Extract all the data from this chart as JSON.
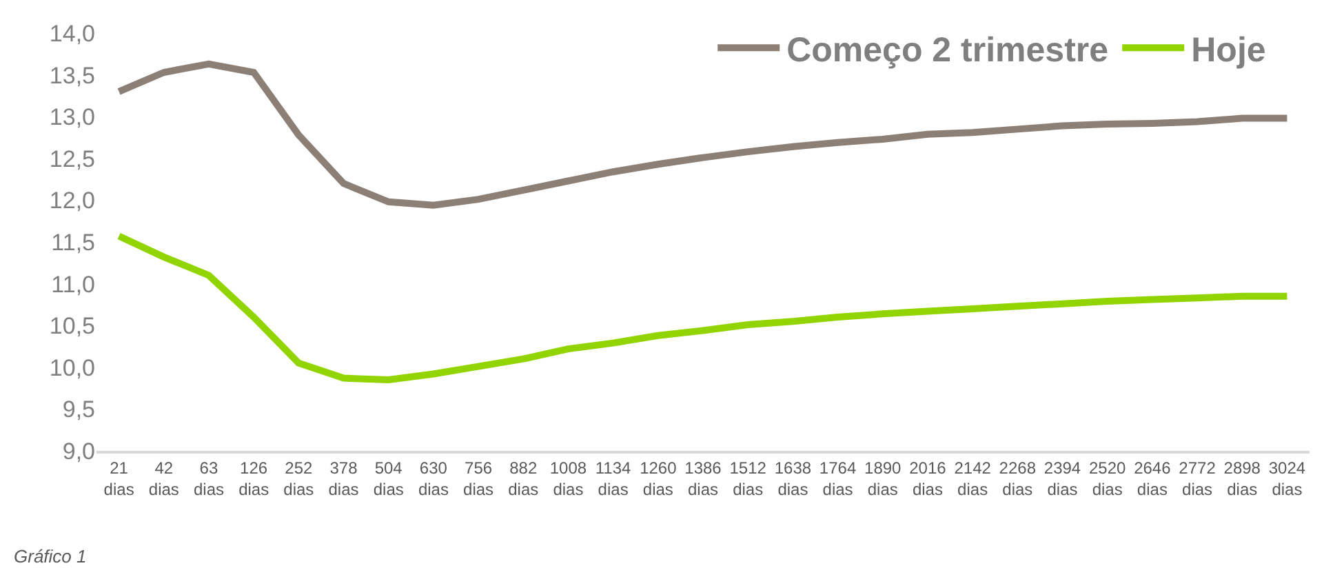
{
  "chart_data": {
    "type": "line",
    "categories": [
      "21 dias",
      "42 dias",
      "63 dias",
      "126 dias",
      "252 dias",
      "378 dias",
      "504 dias",
      "630 dias",
      "756 dias",
      "882 dias",
      "1008 dias",
      "1134 dias",
      "1260 dias",
      "1386 dias",
      "1512 dias",
      "1638 dias",
      "1764 dias",
      "1890 dias",
      "2016 dias",
      "2142 dias",
      "2268 dias",
      "2394 dias",
      "2520 dias",
      "2646 dias",
      "2772 dias",
      "2898 dias",
      "3024 dias"
    ],
    "series": [
      {
        "name": "Começo 2 trimestre",
        "color": "#8c7f76",
        "values": [
          13.3,
          13.53,
          13.63,
          13.53,
          12.78,
          12.2,
          11.98,
          11.94,
          12.01,
          12.12,
          12.23,
          12.34,
          12.43,
          12.51,
          12.58,
          12.64,
          12.69,
          12.73,
          12.79,
          12.81,
          12.85,
          12.89,
          12.91,
          12.92,
          12.94,
          12.98,
          12.98
        ]
      },
      {
        "name": "Hoje",
        "color": "#92d400",
        "values": [
          11.57,
          11.32,
          11.1,
          10.6,
          10.05,
          9.87,
          9.85,
          9.92,
          10.01,
          10.1,
          10.22,
          10.29,
          10.38,
          10.44,
          10.51,
          10.55,
          10.6,
          10.64,
          10.67,
          10.7,
          10.73,
          10.76,
          10.79,
          10.81,
          10.83,
          10.85,
          10.85
        ]
      }
    ],
    "ylim": [
      9,
      14
    ],
    "yticks": [
      {
        "value": 9,
        "label": "9,0"
      },
      {
        "value": 9.5,
        "label": "9,5"
      },
      {
        "value": 10,
        "label": "10,0"
      },
      {
        "value": 10.5,
        "label": "10,5"
      },
      {
        "value": 11,
        "label": "11,0"
      },
      {
        "value": 11.5,
        "label": "11,5"
      },
      {
        "value": 12,
        "label": "12,0"
      },
      {
        "value": 12.5,
        "label": "12,5"
      },
      {
        "value": 13,
        "label": "13,0"
      },
      {
        "value": 13.5,
        "label": "13,5"
      },
      {
        "value": 14,
        "label": "14,0"
      }
    ],
    "legend": "top right",
    "marker": "none",
    "line_style": "solid",
    "annotations": [
      "Gráfico 1"
    ]
  }
}
